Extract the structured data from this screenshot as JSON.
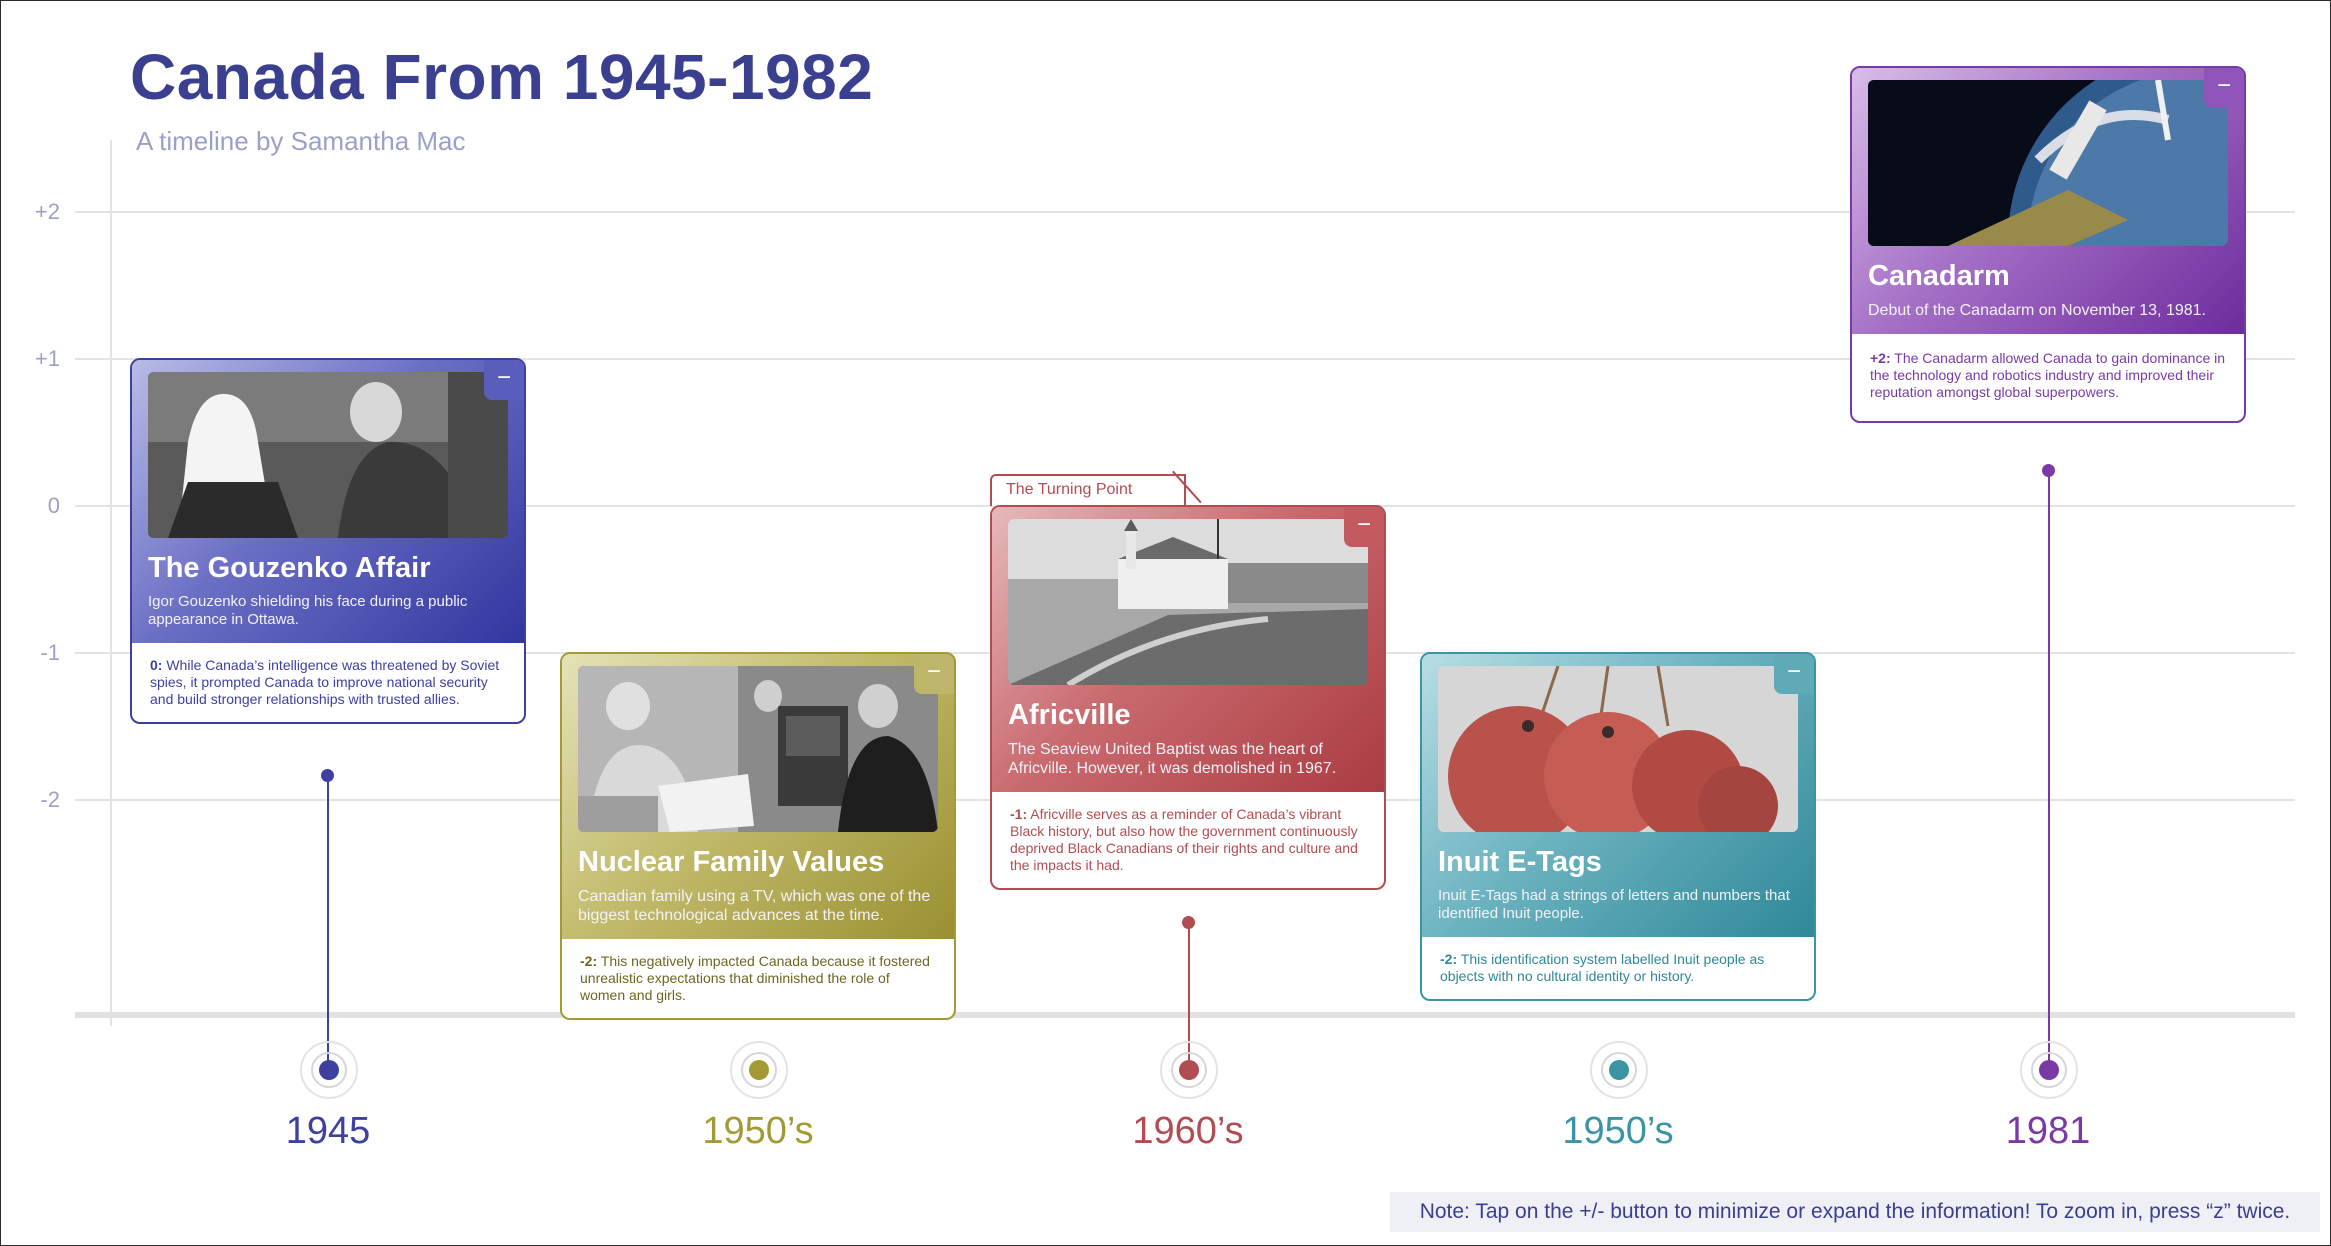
{
  "title": "Canada From 1945-1982",
  "subtitle": "A timeline by Samantha Mac",
  "y_axis_labels": [
    "+2",
    "+1",
    "0",
    "-1",
    "-2"
  ],
  "note": "Note: Tap on the +/- button to minimize or expand the information! To zoom in, press “z” twice.",
  "turning_point_label": "The Turning Point",
  "minus_glyph": "−",
  "colors": {
    "gouzenko": "#3e40a0",
    "nuclear": "#a49a35",
    "africville": "#b14d52",
    "inuit": "#3a94a4",
    "canadarm": "#7a3aa6"
  },
  "events": [
    {
      "id": "gouzenko",
      "year": "1945",
      "title": "The Gouzenko Affair",
      "caption": "Igor Gouzenko shielding his face during a public appearance in Ottawa.",
      "impact_score": "0:",
      "impact_text": " While Canada’s intelligence was threatened by Soviet spies, it prompted Canada to improve national security and build stronger relationships with trusted allies.",
      "icon": "minus-icon"
    },
    {
      "id": "nuclear",
      "year": "1950’s",
      "title": "Nuclear Family Values",
      "caption": "Canadian family using a TV, which was one of the biggest technological advances at the time.",
      "impact_score": "-2:",
      "impact_text": " This negatively impacted Canada because it fostered unrealistic expectations that diminished the role of women and girls.",
      "icon": "minus-icon"
    },
    {
      "id": "africville",
      "year": "1960’s",
      "title": "Africville",
      "caption": "The Seaview United Baptist was the heart of Africville. However, it was demolished in 1967.",
      "impact_score": "-1:",
      "impact_text": " Africville serves as a reminder of Canada’s vibrant Black history, but also how the government continuously deprived Black Canadians of their rights and culture and the impacts it had.",
      "icon": "minus-icon"
    },
    {
      "id": "inuit",
      "year": "1950’s",
      "title": "Inuit E-Tags",
      "caption": "Inuit E-Tags had a strings of letters and numbers that identified Inuit people.",
      "impact_score": "-2:",
      "impact_text": " This identification system labelled Inuit people as objects with no cultural identity or history.",
      "icon": "minus-icon"
    },
    {
      "id": "canadarm",
      "year": "1981",
      "title": "Canadarm",
      "caption": "Debut of the Canadarm on November 13, 1981.",
      "impact_score": "+2:",
      "impact_text": " The Canadarm allowed Canada to gain dominance in the technology and robotics industry and improved their reputation amongst global superpowers.",
      "icon": "minus-icon"
    }
  ]
}
